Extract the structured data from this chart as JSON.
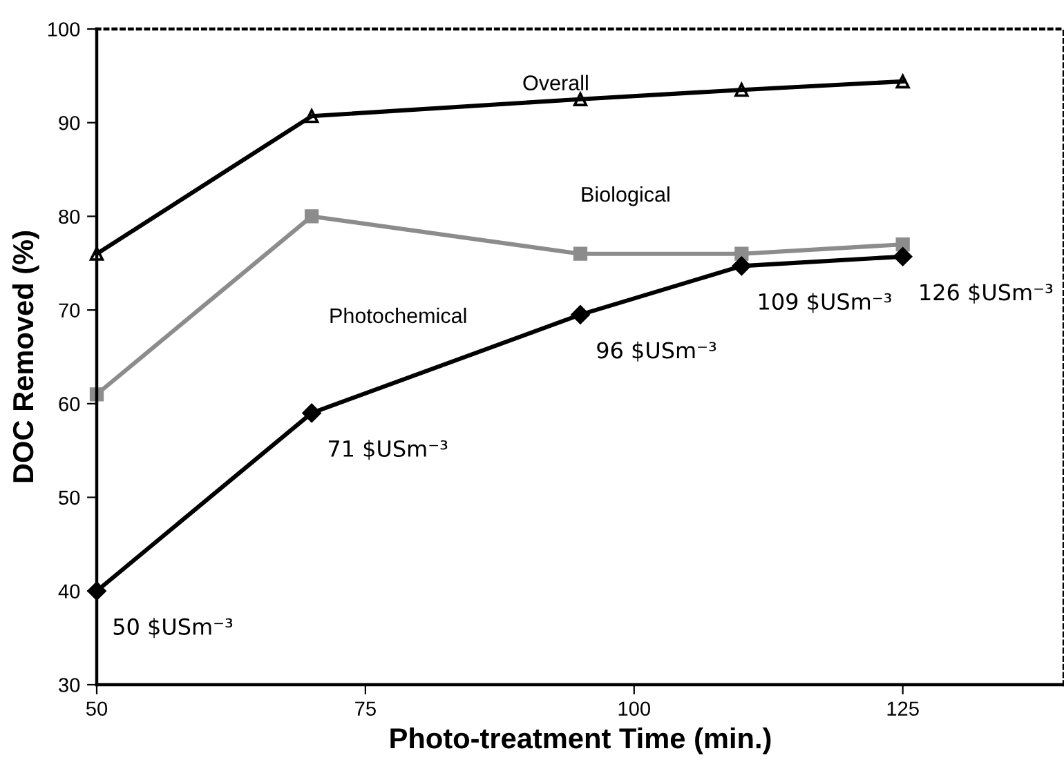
{
  "chart_data": {
    "type": "line",
    "xlabel": "Photo-treatment Time (min.)",
    "ylabel": "DOC Removed (%)",
    "x": [
      50,
      70,
      95,
      110,
      125
    ],
    "series": [
      {
        "name": "Overall",
        "color": "#000000",
        "marker": "triangle",
        "values": [
          76,
          90.7,
          92.5,
          93.5,
          94.4
        ]
      },
      {
        "name": "Biological",
        "color": "#8c8c8c",
        "marker": "square",
        "values": [
          61,
          80,
          76,
          76,
          77
        ]
      },
      {
        "name": "Photochemical",
        "color": "#000000",
        "marker": "diamond",
        "values": [
          40,
          59,
          69.5,
          74.7,
          75.7
        ]
      }
    ],
    "annotations": [
      {
        "text": "50 $USm⁻³",
        "x": 50,
        "y": 40
      },
      {
        "text": "71 $USm⁻³",
        "x": 70,
        "y": 59
      },
      {
        "text": "96 $USm⁻³",
        "x": 95,
        "y": 69.5
      },
      {
        "text": "109 $USm⁻³",
        "x": 110,
        "y": 74.7
      },
      {
        "text": "126 $USm⁻³",
        "x": 125,
        "y": 75.7
      }
    ],
    "xlim": [
      50,
      140
    ],
    "xticks": [
      50,
      75,
      100,
      125
    ],
    "ylim": [
      30,
      100
    ],
    "yticks": [
      30,
      40,
      50,
      60,
      70,
      80,
      90,
      100
    ],
    "grid": false,
    "legend": false,
    "line_style": "solid"
  }
}
